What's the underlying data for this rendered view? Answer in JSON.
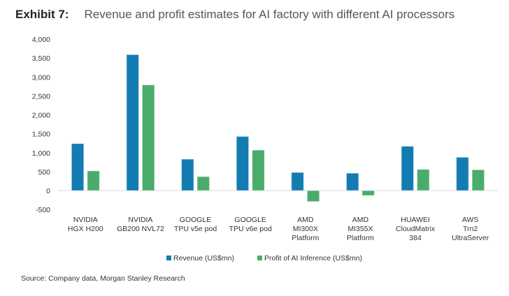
{
  "exhibit_label": "Exhibit 7:",
  "title": "Revenue and profit estimates for AI factory with different AI processors",
  "source": "Source: Company data, Morgan Stanley Research",
  "chart_data": {
    "type": "bar",
    "title": "Revenue and profit estimates for AI factory with different AI processors",
    "categories": [
      [
        "NVIDIA",
        "HGX H200"
      ],
      [
        "NVIDIA",
        "GB200 NVL72"
      ],
      [
        "GOOGLE",
        "TPU v5e pod"
      ],
      [
        "GOOGLE",
        "TPU v6e pod"
      ],
      [
        "AMD",
        "MI300X",
        "Platform"
      ],
      [
        "AMD",
        "MI355X",
        "Platform"
      ],
      [
        "HUAWEI",
        "CloudMatrix",
        "384"
      ],
      [
        "AWS",
        "Trn2",
        "UltraServer"
      ]
    ],
    "series": [
      {
        "name": "Revenue (US$mn)",
        "color": "#137cb2",
        "values": [
          1240,
          3590,
          830,
          1430,
          480,
          460,
          1170,
          880
        ]
      },
      {
        "name": "Profit of AI Inference (US$mn)",
        "color": "#4aac6b",
        "values": [
          520,
          2790,
          370,
          1070,
          -290,
          -130,
          560,
          550
        ]
      }
    ],
    "ylim": [
      -500,
      4000
    ],
    "yticks": [
      -500,
      0,
      500,
      1000,
      1500,
      2000,
      2500,
      3000,
      3500,
      4000
    ],
    "ytick_labels": [
      "-500",
      "0",
      "500",
      "1,000",
      "1,500",
      "2,000",
      "2,500",
      "3,000",
      "3,500",
      "4,000"
    ],
    "grid": false,
    "legend": "bottom"
  }
}
